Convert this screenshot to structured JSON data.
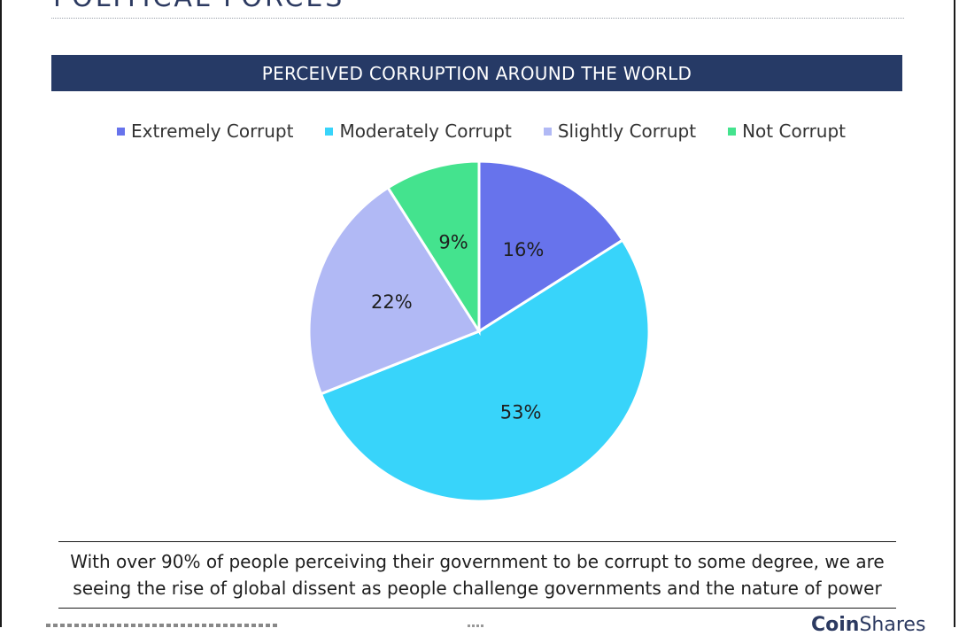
{
  "page": {
    "section_title": "POLITICAL FORCES"
  },
  "chart_data": {
    "type": "pie",
    "title": "PERCEIVED CORRUPTION AROUND THE WORLD",
    "categories": [
      "Extremely Corrupt",
      "Moderately Corrupt",
      "Slightly Corrupt",
      "Not Corrupt"
    ],
    "values": [
      16,
      53,
      22,
      9
    ],
    "data_labels": [
      "16%",
      "53%",
      "22%",
      "9%"
    ],
    "colors": [
      "#6773ec",
      "#38d4fa",
      "#b1b9f5",
      "#44e38e"
    ],
    "legend_position": "top",
    "start_angle": "12 o'clock",
    "direction": "clockwise"
  },
  "caption": {
    "line1": "With over 90% of people perceiving their government to be corrupt to some degree, we are",
    "line2": "seeing the rise of global dissent as people challenge governments and the nature of power"
  },
  "logo": {
    "bold": "Coin",
    "regular": "Shares"
  }
}
